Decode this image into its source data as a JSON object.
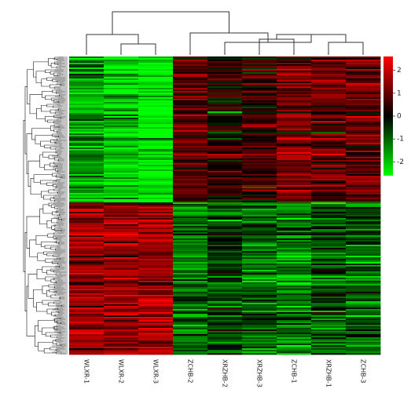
{
  "chart_data": {
    "type": "heatmap",
    "title": "",
    "columns": [
      "WLXR-1",
      "WLXR-2",
      "WLXR-3",
      "ZCHB-2",
      "XRZHB-2",
      "XRZHB-3",
      "ZCHB-1",
      "XRZHB-1",
      "ZCHB-3"
    ],
    "row_groups": [
      {
        "fraction": 0.49,
        "column_means": [
          -1.6,
          -2.1,
          -2.5,
          0.9,
          0.2,
          0.5,
          1.1,
          1.0,
          1.0
        ]
      },
      {
        "fraction": 0.51,
        "column_means": [
          1.5,
          1.4,
          1.5,
          -1.2,
          -0.7,
          -1.0,
          -1.3,
          -0.9,
          -1.0
        ]
      }
    ],
    "color_scale": {
      "min": -2.6,
      "max": 2.6,
      "low_color": "#00ff00",
      "mid_color": "#000000",
      "high_color": "#ff0000"
    },
    "colorbar_ticks": [
      "2",
      "1",
      "0",
      "-1",
      "-2"
    ],
    "colorbar_tick_values": [
      2,
      1,
      0,
      -1,
      -2
    ],
    "column_dendrogram": "top",
    "row_dendrogram": "left"
  }
}
